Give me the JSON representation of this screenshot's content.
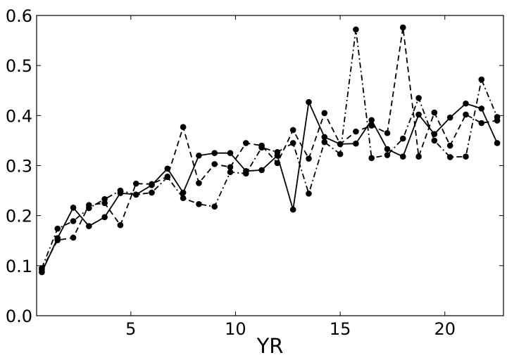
{
  "chart_data": {
    "type": "line",
    "title": "",
    "xlabel": "YR",
    "ylabel": "",
    "xlim": [
      0.5,
      22.8
    ],
    "ylim": [
      0.0,
      0.6
    ],
    "xticks": [
      5,
      10,
      15,
      20
    ],
    "xtick_labels": [
      "5",
      "10",
      "15",
      "20"
    ],
    "yticks": [
      0.0,
      0.1,
      0.2,
      0.3,
      0.4,
      0.5,
      0.6
    ],
    "ytick_labels": [
      "0.0",
      "0.1",
      "0.2",
      "0.3",
      "0.4",
      "0.5",
      "0.6"
    ],
    "grid": false,
    "legend": false,
    "x": [
      0.75,
      1.5,
      2.25,
      3.0,
      3.75,
      4.5,
      5.25,
      6.0,
      6.75,
      7.5,
      8.25,
      9.0,
      9.75,
      10.5,
      11.25,
      12.0,
      12.75,
      13.5,
      14.25,
      15.0,
      15.75,
      16.5,
      17.25,
      18.0,
      18.75,
      19.5,
      20.25,
      21.0,
      21.75,
      22.5
    ],
    "series": [
      {
        "style": "solid",
        "color": "#000000",
        "values": [
          0.087,
          0.155,
          0.216,
          0.179,
          0.197,
          0.245,
          0.242,
          0.261,
          0.294,
          0.246,
          0.32,
          0.325,
          0.325,
          0.289,
          0.291,
          0.32,
          0.212,
          0.427,
          0.357,
          0.343,
          0.344,
          0.391,
          0.333,
          0.318,
          0.402,
          0.363,
          0.396,
          0.424,
          0.414,
          0.345
        ]
      },
      {
        "style": "dashed",
        "color": "#000000",
        "values": [
          0.092,
          0.151,
          0.156,
          0.221,
          0.225,
          0.181,
          0.264,
          0.263,
          0.278,
          0.377,
          0.265,
          0.303,
          0.297,
          0.345,
          0.34,
          0.305,
          0.371,
          0.314,
          0.405,
          0.343,
          0.368,
          0.38,
          0.365,
          0.576,
          0.318,
          0.406,
          0.34,
          0.402,
          0.385,
          0.39
        ]
      },
      {
        "style": "dashdot",
        "color": "#000000",
        "values": [
          0.095,
          0.174,
          0.189,
          0.215,
          0.233,
          0.25,
          0.242,
          0.246,
          0.277,
          0.235,
          0.223,
          0.218,
          0.287,
          0.284,
          0.336,
          0.327,
          0.345,
          0.244,
          0.347,
          0.323,
          0.572,
          0.315,
          0.321,
          0.354,
          0.435,
          0.35,
          0.317,
          0.318,
          0.472,
          0.397
        ]
      }
    ]
  }
}
